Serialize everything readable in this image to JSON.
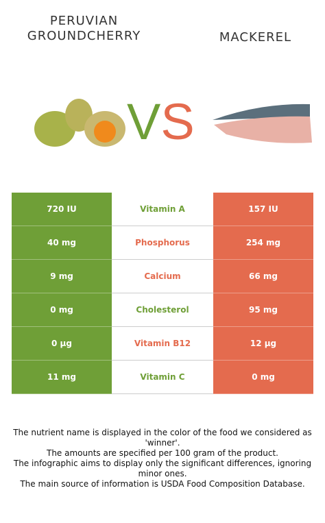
{
  "header": {
    "left_food": "PERUVIAN GROUNDCHERRY",
    "right_food": "MACKEREL",
    "vs_v": "V",
    "vs_s": "S"
  },
  "colors": {
    "left": "#6f9f37",
    "right": "#e46b4e"
  },
  "table": {
    "rows": [
      {
        "left": "720 IU",
        "nutrient": "Vitamin A",
        "right": "157 IU",
        "winner": "left"
      },
      {
        "left": "40 mg",
        "nutrient": "Phosphorus",
        "right": "254 mg",
        "winner": "right"
      },
      {
        "left": "9 mg",
        "nutrient": "Calcium",
        "right": "66 mg",
        "winner": "right"
      },
      {
        "left": "0 mg",
        "nutrient": "Cholesterol",
        "right": "95 mg",
        "winner": "left"
      },
      {
        "left": "0 µg",
        "nutrient": "Vitamin B12",
        "right": "12 µg",
        "winner": "right"
      },
      {
        "left": "11 mg",
        "nutrient": "Vitamin C",
        "right": "0 mg",
        "winner": "left"
      }
    ]
  },
  "footer": [
    "The nutrient name is displayed in the color of the food we considered as 'winner'.",
    "The amounts are specified per 100 gram of the product.",
    "The infographic aims to display only the significant differences, ignoring minor ones.",
    "The main source of information is USDA Food Composition Database."
  ]
}
